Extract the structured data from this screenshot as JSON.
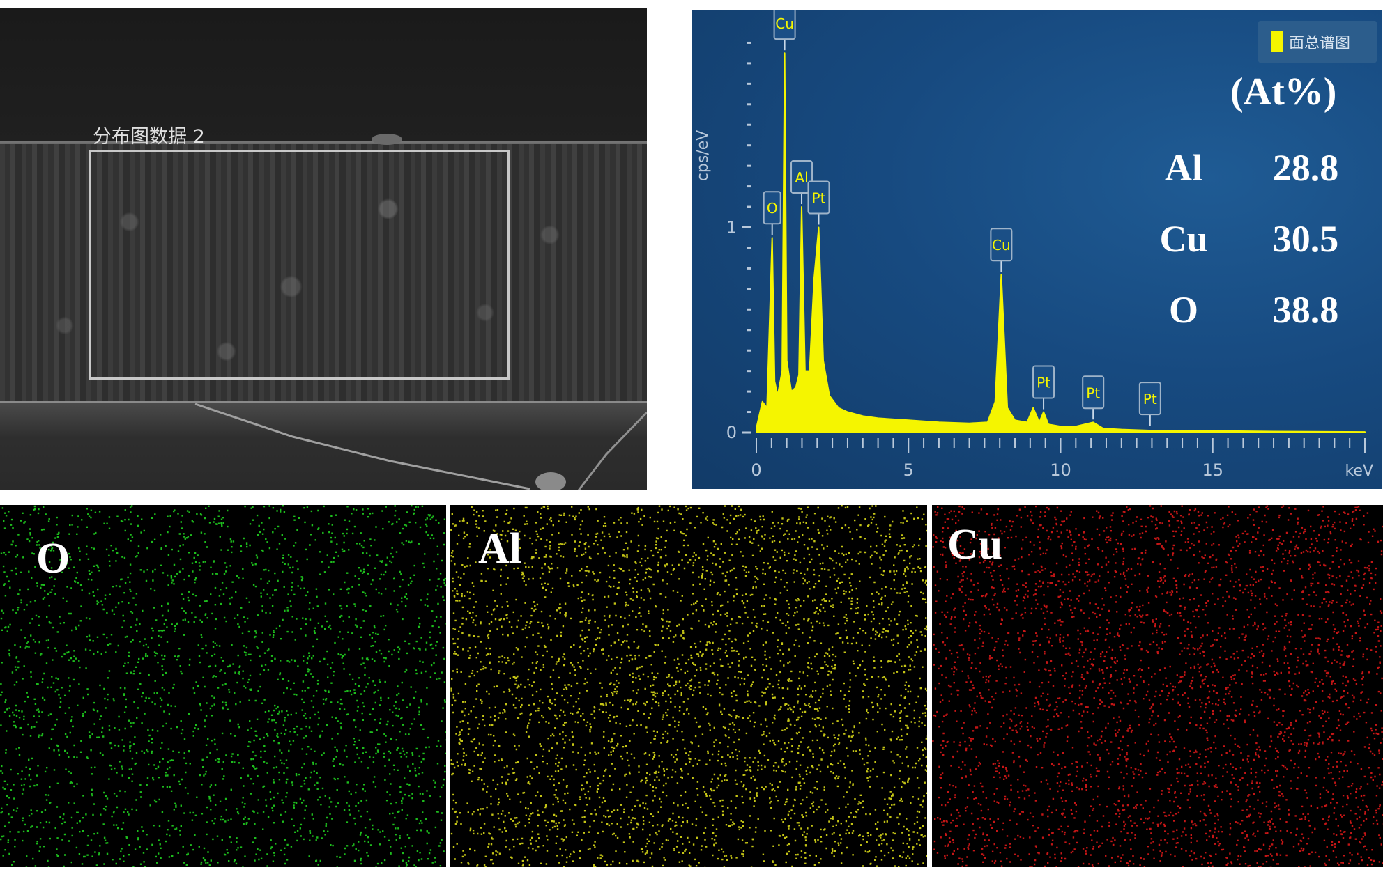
{
  "sem": {
    "region_label": "分布图数据 2"
  },
  "chart_data": {
    "type": "line",
    "title": "",
    "xlabel": "keV",
    "ylabel": "cps/eV",
    "xlim": [
      0,
      20
    ],
    "ylim": [
      0,
      2
    ],
    "x_ticks": [
      0,
      5,
      10,
      15
    ],
    "y_ticks": [
      0,
      1
    ],
    "series": [
      {
        "name": "面总谱图",
        "color": "#f5f500",
        "x": [
          0,
          0.2,
          0.35,
          0.52,
          0.6,
          0.7,
          0.85,
          0.93,
          1.0,
          1.15,
          1.3,
          1.4,
          1.49,
          1.6,
          1.75,
          1.9,
          2.05,
          2.2,
          2.4,
          2.7,
          3.0,
          3.5,
          4.0,
          5.0,
          6.0,
          7.0,
          7.6,
          7.85,
          8.05,
          8.25,
          8.5,
          8.9,
          9.1,
          9.3,
          9.44,
          9.6,
          10.0,
          10.5,
          11.07,
          11.4,
          12.0,
          13.0,
          15.0,
          17.0,
          20.0
        ],
        "y": [
          0.02,
          0.15,
          0.12,
          0.95,
          0.25,
          0.18,
          0.3,
          1.85,
          0.35,
          0.2,
          0.22,
          0.28,
          1.1,
          0.3,
          0.3,
          0.75,
          1.0,
          0.35,
          0.18,
          0.12,
          0.1,
          0.08,
          0.07,
          0.06,
          0.05,
          0.045,
          0.05,
          0.15,
          0.77,
          0.12,
          0.06,
          0.05,
          0.12,
          0.05,
          0.1,
          0.04,
          0.03,
          0.03,
          0.05,
          0.02,
          0.015,
          0.01,
          0.008,
          0.005,
          0.003
        ]
      }
    ],
    "peak_labels": [
      {
        "text": "Cu",
        "x": 0.93,
        "y": 1.85
      },
      {
        "text": "O",
        "x": 0.52,
        "y": 0.95
      },
      {
        "text": "Al",
        "x": 1.49,
        "y": 1.1
      },
      {
        "text": "Pt",
        "x": 2.05,
        "y": 1.0
      },
      {
        "text": "Cu",
        "x": 8.05,
        "y": 0.77
      },
      {
        "text": "Pt",
        "x": 9.44,
        "y": 0.1
      },
      {
        "text": "Pt",
        "x": 11.07,
        "y": 0.05
      },
      {
        "text": "Pt",
        "x": 12.94,
        "y": 0.02
      }
    ],
    "legend": "top-right",
    "grid": false
  },
  "composition": {
    "unit": "(At%)",
    "rows": [
      {
        "element": "Al",
        "value": "28.8"
      },
      {
        "element": "Cu",
        "value": "30.5"
      },
      {
        "element": "O",
        "value": "38.8"
      }
    ]
  },
  "maps": [
    {
      "label": "O",
      "color": "#22dd22"
    },
    {
      "label": "Al",
      "color": "#e6e61a"
    },
    {
      "label": "Cu",
      "color": "#e61a1a"
    }
  ]
}
